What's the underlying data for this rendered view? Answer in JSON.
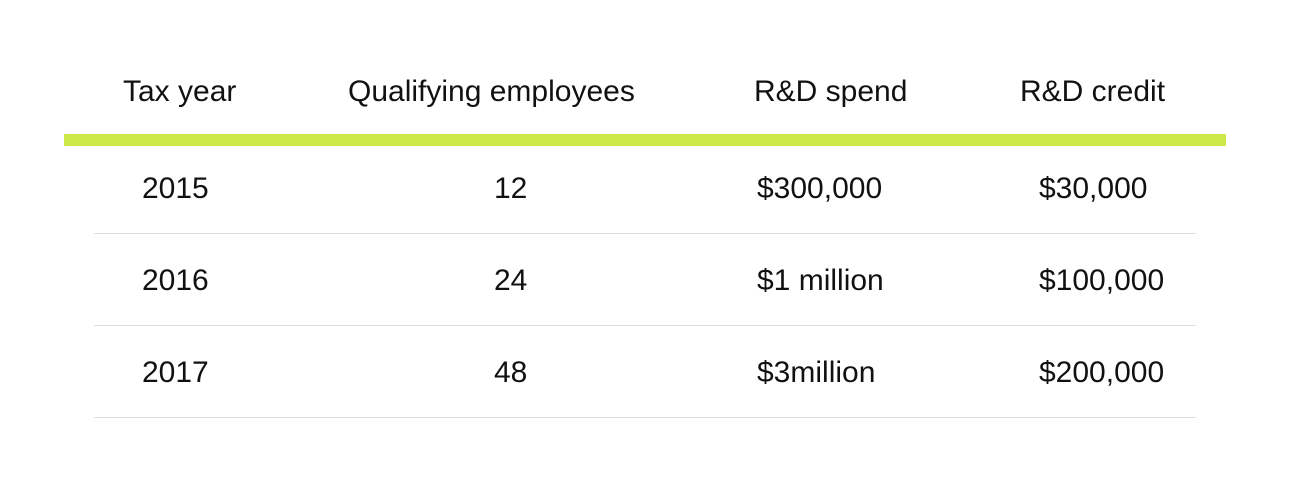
{
  "theme": {
    "accent_color": "#cbea4a",
    "divider_color": "#dedede"
  },
  "table": {
    "columns": [
      "Tax year",
      "Qualifying employees",
      "R&D spend",
      "R&D credit"
    ],
    "rows": [
      [
        "2015",
        "12",
        "$300,000",
        "$30,000"
      ],
      [
        "2016",
        "24",
        "$1 million",
        "$100,000"
      ],
      [
        "2017",
        "48",
        "$3million",
        "$200,000"
      ]
    ]
  }
}
